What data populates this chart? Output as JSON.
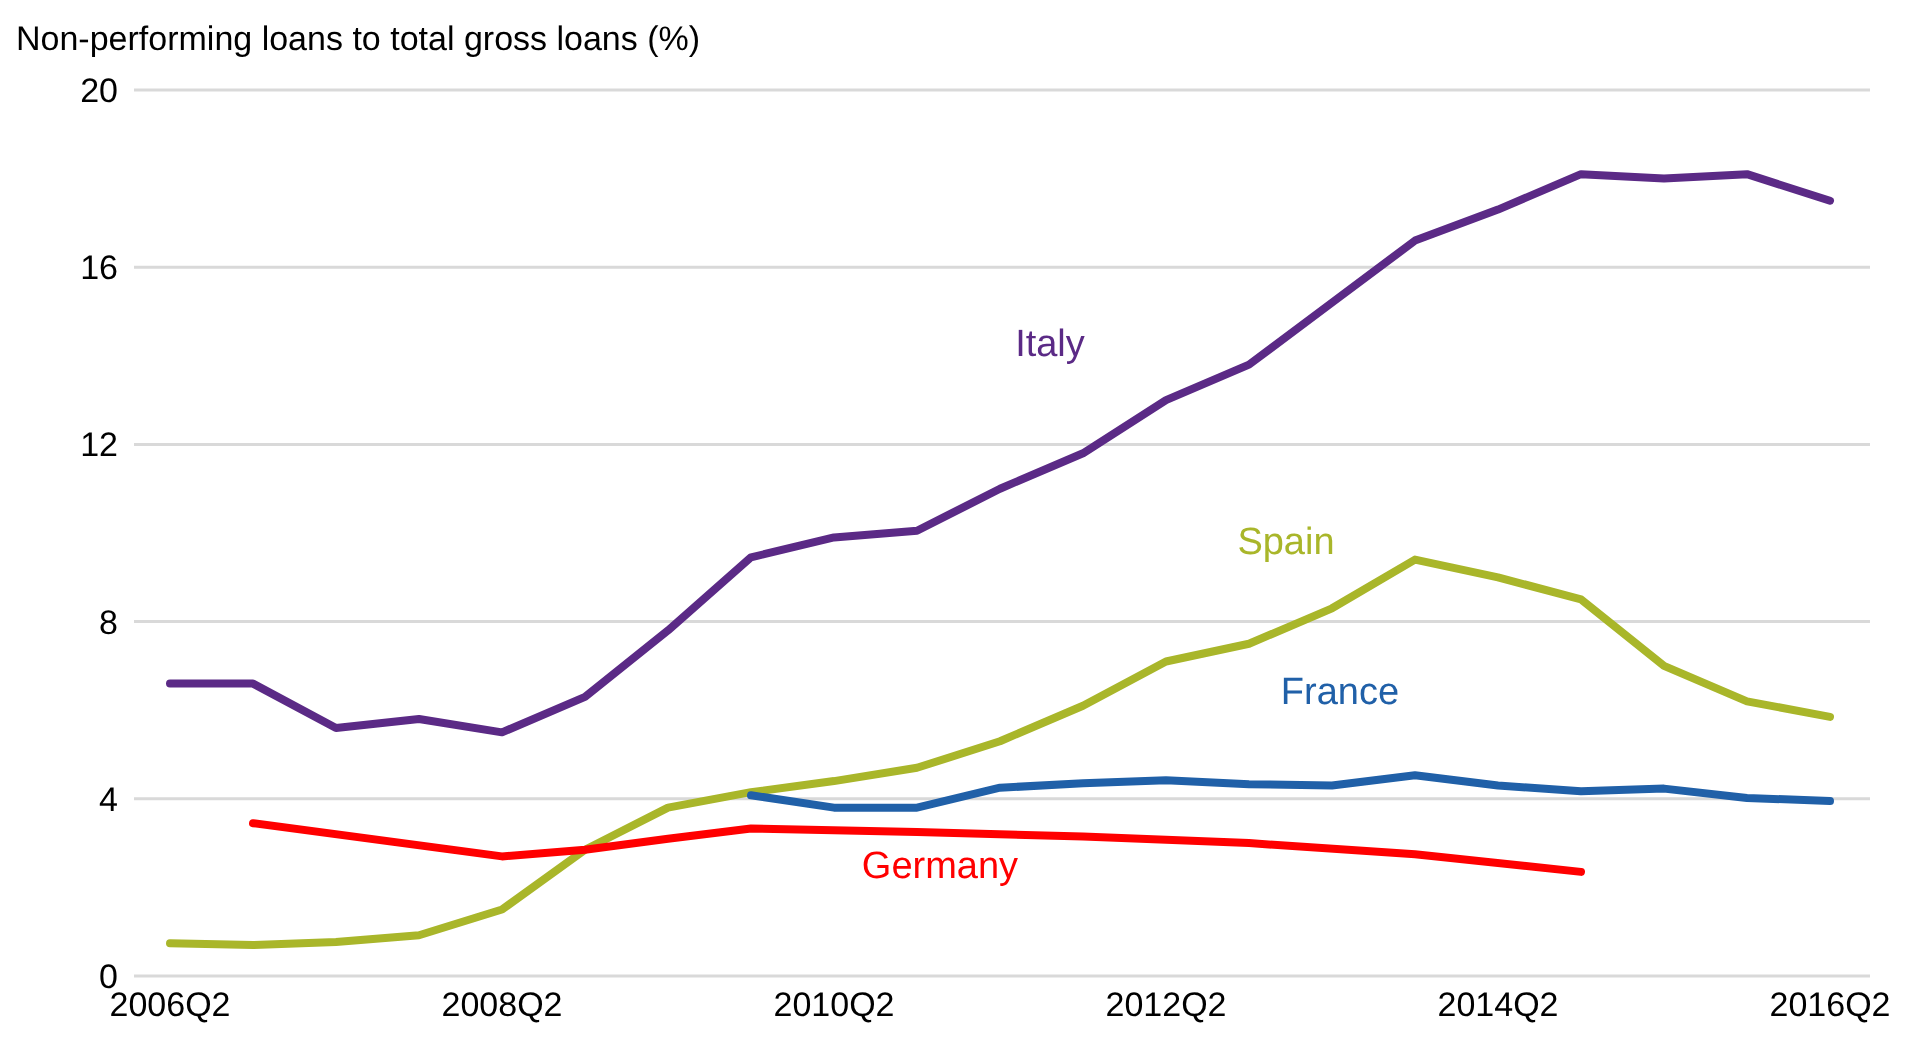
{
  "chart_data": {
    "type": "line",
    "ylabel": "Non-performing loans to total gross loans (%)",
    "categories": [
      "2006Q2",
      null,
      null,
      null,
      "2008Q2",
      null,
      null,
      null,
      "2010Q2",
      null,
      null,
      null,
      "2012Q2",
      null,
      null,
      null,
      "2014Q2",
      null,
      null,
      null,
      "2016Q2"
    ],
    "series": [
      {
        "name": "Italy",
        "color": "#5b2a86",
        "values": [
          6.6,
          6.6,
          5.6,
          5.8,
          5.5,
          6.3,
          7.8,
          9.45,
          9.9,
          10.05,
          11.0,
          11.8,
          13.0,
          13.8,
          15.2,
          16.6,
          17.3,
          18.1,
          18.0,
          18.1,
          17.5
        ]
      },
      {
        "name": "Spain",
        "color": "#a9b62a",
        "values": [
          0.74,
          0.7,
          0.77,
          0.92,
          1.5,
          2.85,
          3.8,
          4.15,
          4.4,
          4.7,
          5.3,
          6.1,
          7.1,
          7.5,
          8.3,
          9.4,
          9.0,
          8.5,
          7.0,
          6.2,
          5.85
        ]
      },
      {
        "name": "France",
        "color": "#2060a8",
        "values": [
          null,
          null,
          null,
          null,
          null,
          null,
          null,
          4.08,
          3.8,
          3.8,
          4.25,
          4.35,
          4.42,
          4.33,
          4.3,
          4.53,
          4.3,
          4.17,
          4.23,
          4.02,
          3.95
        ]
      },
      {
        "name": "Germany",
        "color": "#ff0000",
        "values": [
          null,
          3.45,
          null,
          null,
          2.7,
          2.85,
          3.1,
          3.33,
          null,
          3.25,
          null,
          3.15,
          null,
          3.0,
          null,
          2.75,
          null,
          2.35,
          null,
          null,
          null
        ]
      }
    ],
    "ylim": [
      0,
      20
    ],
    "yticks": [
      0,
      4,
      8,
      12,
      16,
      20
    ],
    "grid": "y",
    "legend": false,
    "marker": "none",
    "line_style": "solid"
  }
}
